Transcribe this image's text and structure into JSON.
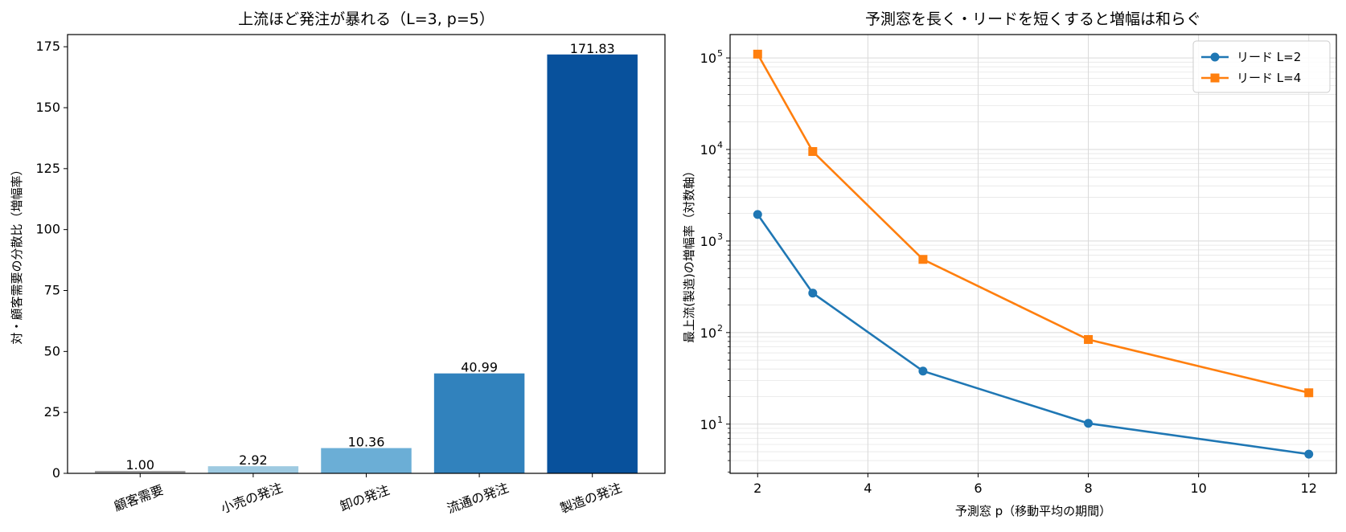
{
  "chart_data": [
    {
      "type": "bar",
      "title": "上流ほど発注が暴れる（L=3, p=5）",
      "xlabel": "",
      "ylabel": "対・顧客需要の分散比（増幅率）",
      "categories": [
        "顧客需要",
        "小売の発注",
        "卸の発注",
        "流通の発注",
        "製造の発注"
      ],
      "values": [
        1.0,
        2.92,
        10.36,
        40.99,
        171.83
      ],
      "data_labels": [
        "1.00",
        "2.92",
        "10.36",
        "40.99",
        "171.83"
      ],
      "bar_colors": [
        "#9e9e9e",
        "#9ecae1",
        "#6baed6",
        "#3182bd",
        "#08519c"
      ],
      "ylim": [
        0,
        180
      ],
      "yticks": [
        0,
        25,
        50,
        75,
        100,
        125,
        150,
        175
      ],
      "grid": false
    },
    {
      "type": "line",
      "title": "予測窓を長く・リードを短くすると増幅は和らぐ",
      "xlabel": "予測窓 p（移動平均の期間）",
      "ylabel": "最上流(製造)の増幅率（対数軸）",
      "yscale": "log",
      "xlim": [
        1.5,
        12.5
      ],
      "ylim": [
        2.9,
        180000
      ],
      "xticks": [
        2,
        4,
        6,
        8,
        10,
        12
      ],
      "yticks": [
        {
          "value": 10,
          "base": "10",
          "exp": "1"
        },
        {
          "value": 100,
          "base": "10",
          "exp": "2"
        },
        {
          "value": 1000,
          "base": "10",
          "exp": "3"
        },
        {
          "value": 10000,
          "base": "10",
          "exp": "4"
        },
        {
          "value": 100000,
          "base": "10",
          "exp": "5"
        }
      ],
      "grid": true,
      "legend_position": "top-right",
      "x": [
        2,
        3,
        5,
        8,
        12
      ],
      "series": [
        {
          "name": "リード L=2",
          "values": [
            1950,
            270,
            38,
            10.2,
            4.7
          ],
          "color": "#1f77b4",
          "marker": "circle"
        },
        {
          "name": "リード L=4",
          "values": [
            110000,
            9500,
            630,
            84,
            22
          ],
          "color": "#ff7f0e",
          "marker": "square"
        }
      ]
    }
  ]
}
